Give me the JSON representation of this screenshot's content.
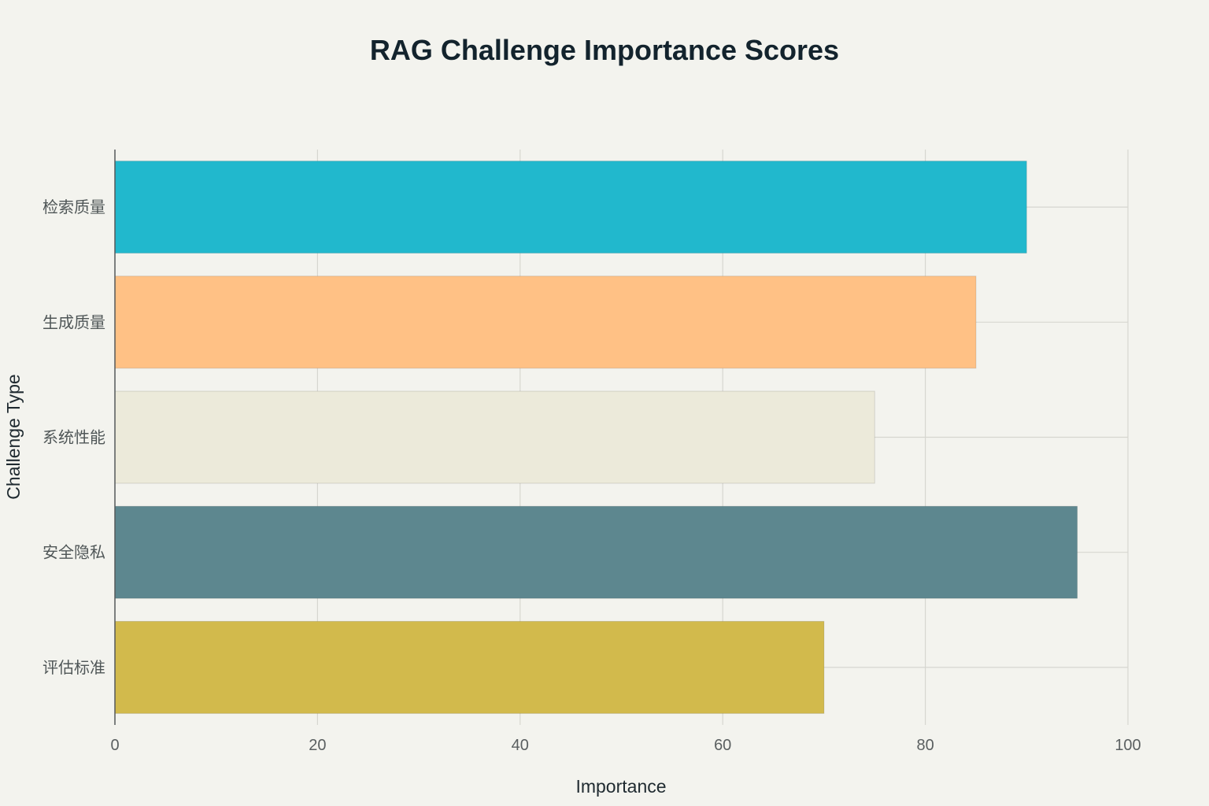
{
  "chart_data": {
    "type": "bar",
    "orientation": "horizontal",
    "title": "RAG Challenge Importance Scores",
    "xlabel": "Importance",
    "ylabel": "Challenge Type",
    "categories": [
      "检索质量",
      "生成质量",
      "系统性能",
      "安全隐私",
      "评估标准"
    ],
    "values": [
      90,
      85,
      75,
      95,
      70
    ],
    "colors": [
      "#21b8cd",
      "#ffc185",
      "#eceada",
      "#5d878f",
      "#d2ba4c"
    ],
    "xlim": [
      0,
      100
    ],
    "xticks": [
      0,
      20,
      40,
      60,
      80,
      100
    ],
    "grid": true,
    "legend": "none"
  }
}
